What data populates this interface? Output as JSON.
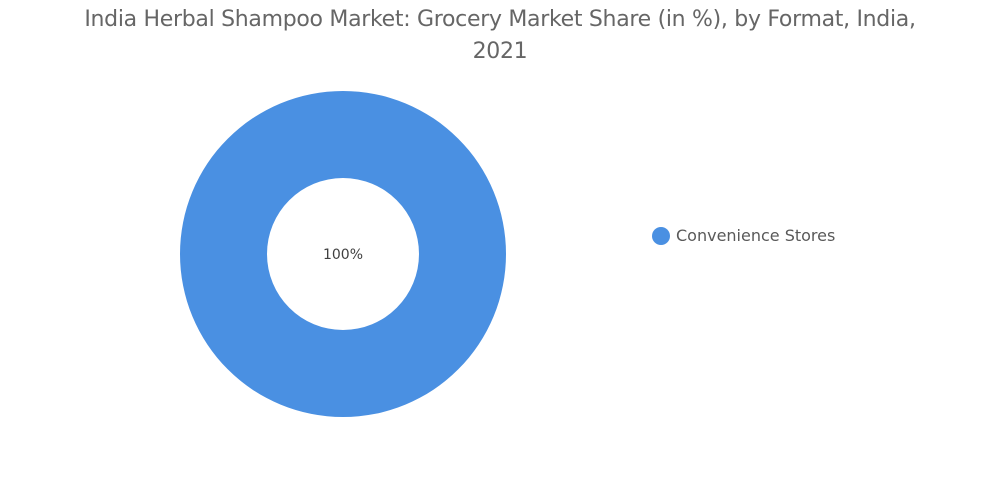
{
  "chart_data": {
    "type": "pie",
    "variant": "donut",
    "title_lines": [
      "India Herbal Shampoo Market: Grocery Market Share (in %), by Format, India,",
      "2021"
    ],
    "categories": [
      "Convenience Stores"
    ],
    "values": [
      100
    ],
    "data_labels": [
      "100%"
    ],
    "colors": [
      "#4a90e2"
    ],
    "legend_position": "right"
  }
}
